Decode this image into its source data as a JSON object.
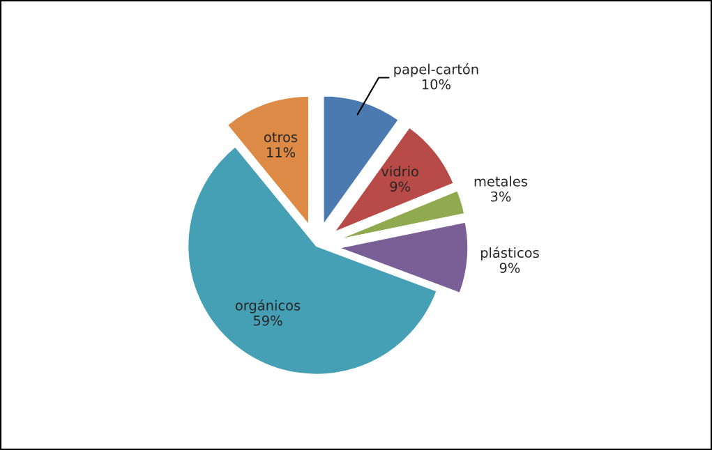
{
  "chart_data": {
    "type": "pie",
    "categories": [
      "papel-cartón",
      "vidrio",
      "metales",
      "plásticos",
      "orgánicos",
      "otros"
    ],
    "values": [
      10,
      9,
      3,
      9,
      59,
      11
    ],
    "value_labels": [
      "10%",
      "9%",
      "3%",
      "9%",
      "59%",
      "11%"
    ],
    "colors": [
      "#4a7ab0",
      "#b84a47",
      "#8faa4f",
      "#7a5e96",
      "#46a0b5",
      "#dc8a45"
    ]
  }
}
